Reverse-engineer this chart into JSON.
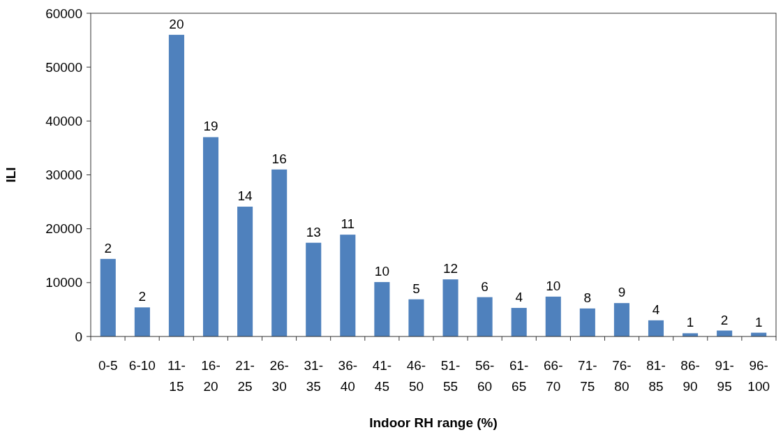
{
  "chart_data": {
    "type": "bar",
    "xlabel": "Indoor RH range (%)",
    "ylabel": "ILI",
    "categories": [
      "0-5",
      "6-10",
      "11-15",
      "16-20",
      "21-25",
      "26-30",
      "31-35",
      "36-40",
      "41-45",
      "46-50",
      "51-55",
      "56-60",
      "61-65",
      "66-70",
      "71-75",
      "76-80",
      "81-85",
      "86-90",
      "91-95",
      "96-100"
    ],
    "values": [
      14400,
      5400,
      56000,
      37000,
      24100,
      31000,
      17400,
      18900,
      10100,
      6900,
      10600,
      7300,
      5300,
      7400,
      5200,
      6200,
      3000,
      600,
      1100,
      700
    ],
    "annotations": [
      {
        "text": "2",
        "x": "0-5",
        "y": 14400
      },
      {
        "text": "2",
        "x": "6-10",
        "y": 5400
      },
      {
        "text": "20",
        "x": "11-15",
        "y": 56000
      },
      {
        "text": "19",
        "x": "16-20",
        "y": 37000
      },
      {
        "text": "14",
        "x": "21-25",
        "y": 24100
      },
      {
        "text": "16",
        "x": "26-30",
        "y": 31000
      },
      {
        "text": "13",
        "x": "31-35",
        "y": 17400
      },
      {
        "text": "11",
        "x": "36-40",
        "y": 18900
      },
      {
        "text": "10",
        "x": "41-45",
        "y": 10100
      },
      {
        "text": "5",
        "x": "46-50",
        "y": 6900
      },
      {
        "text": "12",
        "x": "51-55",
        "y": 10600
      },
      {
        "text": "6",
        "x": "56-60",
        "y": 7300
      },
      {
        "text": "4",
        "x": "61-65",
        "y": 5300
      },
      {
        "text": "10",
        "x": "66-70",
        "y": 7400
      },
      {
        "text": "8",
        "x": "71-75",
        "y": 5200
      },
      {
        "text": "9",
        "x": "76-80",
        "y": 6200
      },
      {
        "text": "4",
        "x": "81-85",
        "y": 3000
      },
      {
        "text": "1",
        "x": "86-90",
        "y": 600
      },
      {
        "text": "2",
        "x": "91-95",
        "y": 1100
      },
      {
        "text": "1",
        "x": "96-100",
        "y": 700
      }
    ],
    "color": "#4f81bd",
    "ylim": [
      0,
      60000
    ],
    "yticks": [
      0,
      10000,
      20000,
      30000,
      40000,
      50000,
      60000
    ],
    "grid": false
  }
}
